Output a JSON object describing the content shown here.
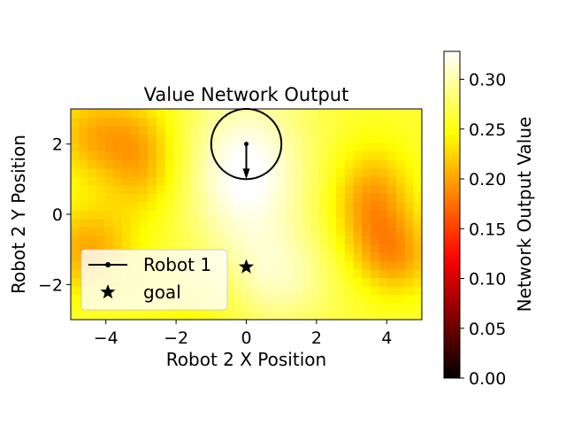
{
  "chart_data": {
    "type": "heatmap",
    "title": "Value Network Output",
    "xlabel": "Robot 2 X Position",
    "ylabel": "Robot 2 Y Position",
    "xlim": [
      -5,
      5
    ],
    "ylim": [
      -3,
      3
    ],
    "x_ticks": [
      -4,
      -2,
      0,
      2,
      4
    ],
    "y_ticks": [
      -2,
      0,
      2
    ],
    "x_tick_labels": [
      "−4",
      "−2",
      "0",
      "2",
      "4"
    ],
    "y_tick_labels": [
      "−2",
      "0",
      "2"
    ],
    "grid_resolution": {
      "nx": 41,
      "ny": 25
    },
    "value_field": {
      "base": 0.262,
      "blobs": [
        {
          "x": 0.0,
          "y": 1.2,
          "sx": 1.2,
          "sy": 1.6,
          "amp": 0.07
        },
        {
          "x": 0.9,
          "y": -1.8,
          "sx": 1.1,
          "sy": 1.0,
          "amp": 0.04
        },
        {
          "x": -4.4,
          "y": 2.3,
          "sx": 0.9,
          "sy": 0.9,
          "amp": -0.05
        },
        {
          "x": -3.0,
          "y": 1.6,
          "sx": 0.8,
          "sy": 1.1,
          "amp": -0.055
        },
        {
          "x": -4.5,
          "y": -1.0,
          "sx": 0.9,
          "sy": 0.9,
          "amp": -0.06
        },
        {
          "x": 3.6,
          "y": 0.3,
          "sx": 0.8,
          "sy": 1.1,
          "amp": -0.07
        },
        {
          "x": 4.3,
          "y": -1.2,
          "sx": 0.8,
          "sy": 0.8,
          "amp": -0.055
        },
        {
          "x": -1.5,
          "y": -2.5,
          "sx": 1.0,
          "sy": 0.7,
          "amp": -0.02
        }
      ]
    },
    "colorbar": {
      "label": "Network Output Value",
      "cmap": "hot",
      "vmin": 0.0,
      "vmax": 0.328,
      "ticks": [
        0.0,
        0.05,
        0.1,
        0.15,
        0.2,
        0.25,
        0.3
      ],
      "tick_labels": [
        "0.00",
        "0.05",
        "0.10",
        "0.15",
        "0.20",
        "0.25",
        "0.30"
      ]
    },
    "robot1": {
      "position": [
        0,
        2
      ],
      "radius": 1.0,
      "heading": [
        0,
        -1
      ],
      "arrow_length": 1.0,
      "color": "#000000"
    },
    "goal": {
      "position": [
        0,
        -1.5
      ],
      "marker": "star",
      "color": "#000000"
    },
    "legend": {
      "location": "lower-left",
      "entries": [
        {
          "label": "Robot 1",
          "marker": "line-dot"
        },
        {
          "label": "goal",
          "marker": "star"
        }
      ]
    }
  }
}
